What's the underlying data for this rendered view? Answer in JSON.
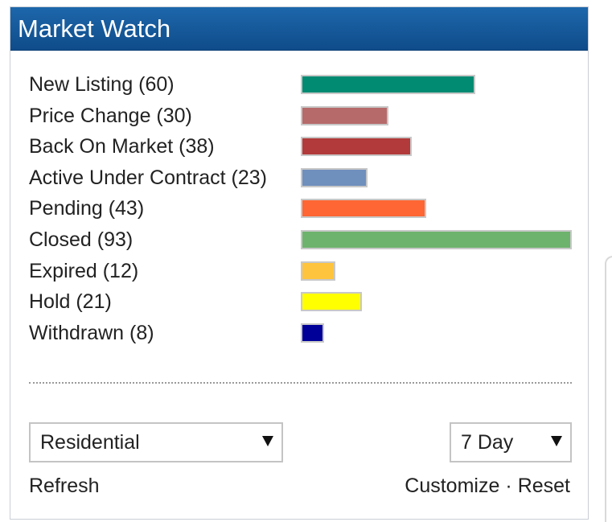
{
  "widget": {
    "title": "Market Watch"
  },
  "rows": [
    {
      "label": "New Listing (60)",
      "count": 60,
      "color": "#008b72"
    },
    {
      "label": "Price Change (30)",
      "count": 30,
      "color": "#b66a6a"
    },
    {
      "label": "Back On Market (38)",
      "count": 38,
      "color": "#b23a3a"
    },
    {
      "label": "Active Under Contract (23)",
      "count": 23,
      "color": "#6f8fbd"
    },
    {
      "label": "Pending (43)",
      "count": 43,
      "color": "#ff6633"
    },
    {
      "label": "Closed (93)",
      "count": 93,
      "color": "#6db36d"
    },
    {
      "label": "Expired (12)",
      "count": 12,
      "color": "#ffc43d"
    },
    {
      "label": "Hold (21)",
      "count": 21,
      "color": "#ffff00"
    },
    {
      "label": "Withdrawn (8)",
      "count": 8,
      "color": "#000099"
    }
  ],
  "filters": {
    "property_type": "Residential",
    "period": "7 Day"
  },
  "footer": {
    "refresh": "Refresh",
    "customize": "Customize",
    "separator": "·",
    "reset": "Reset"
  },
  "colors": {
    "header_top": "#1d67ab",
    "header_bottom": "#0f4c8a"
  },
  "icons": {
    "dropdown": "chevron-down-icon"
  }
}
